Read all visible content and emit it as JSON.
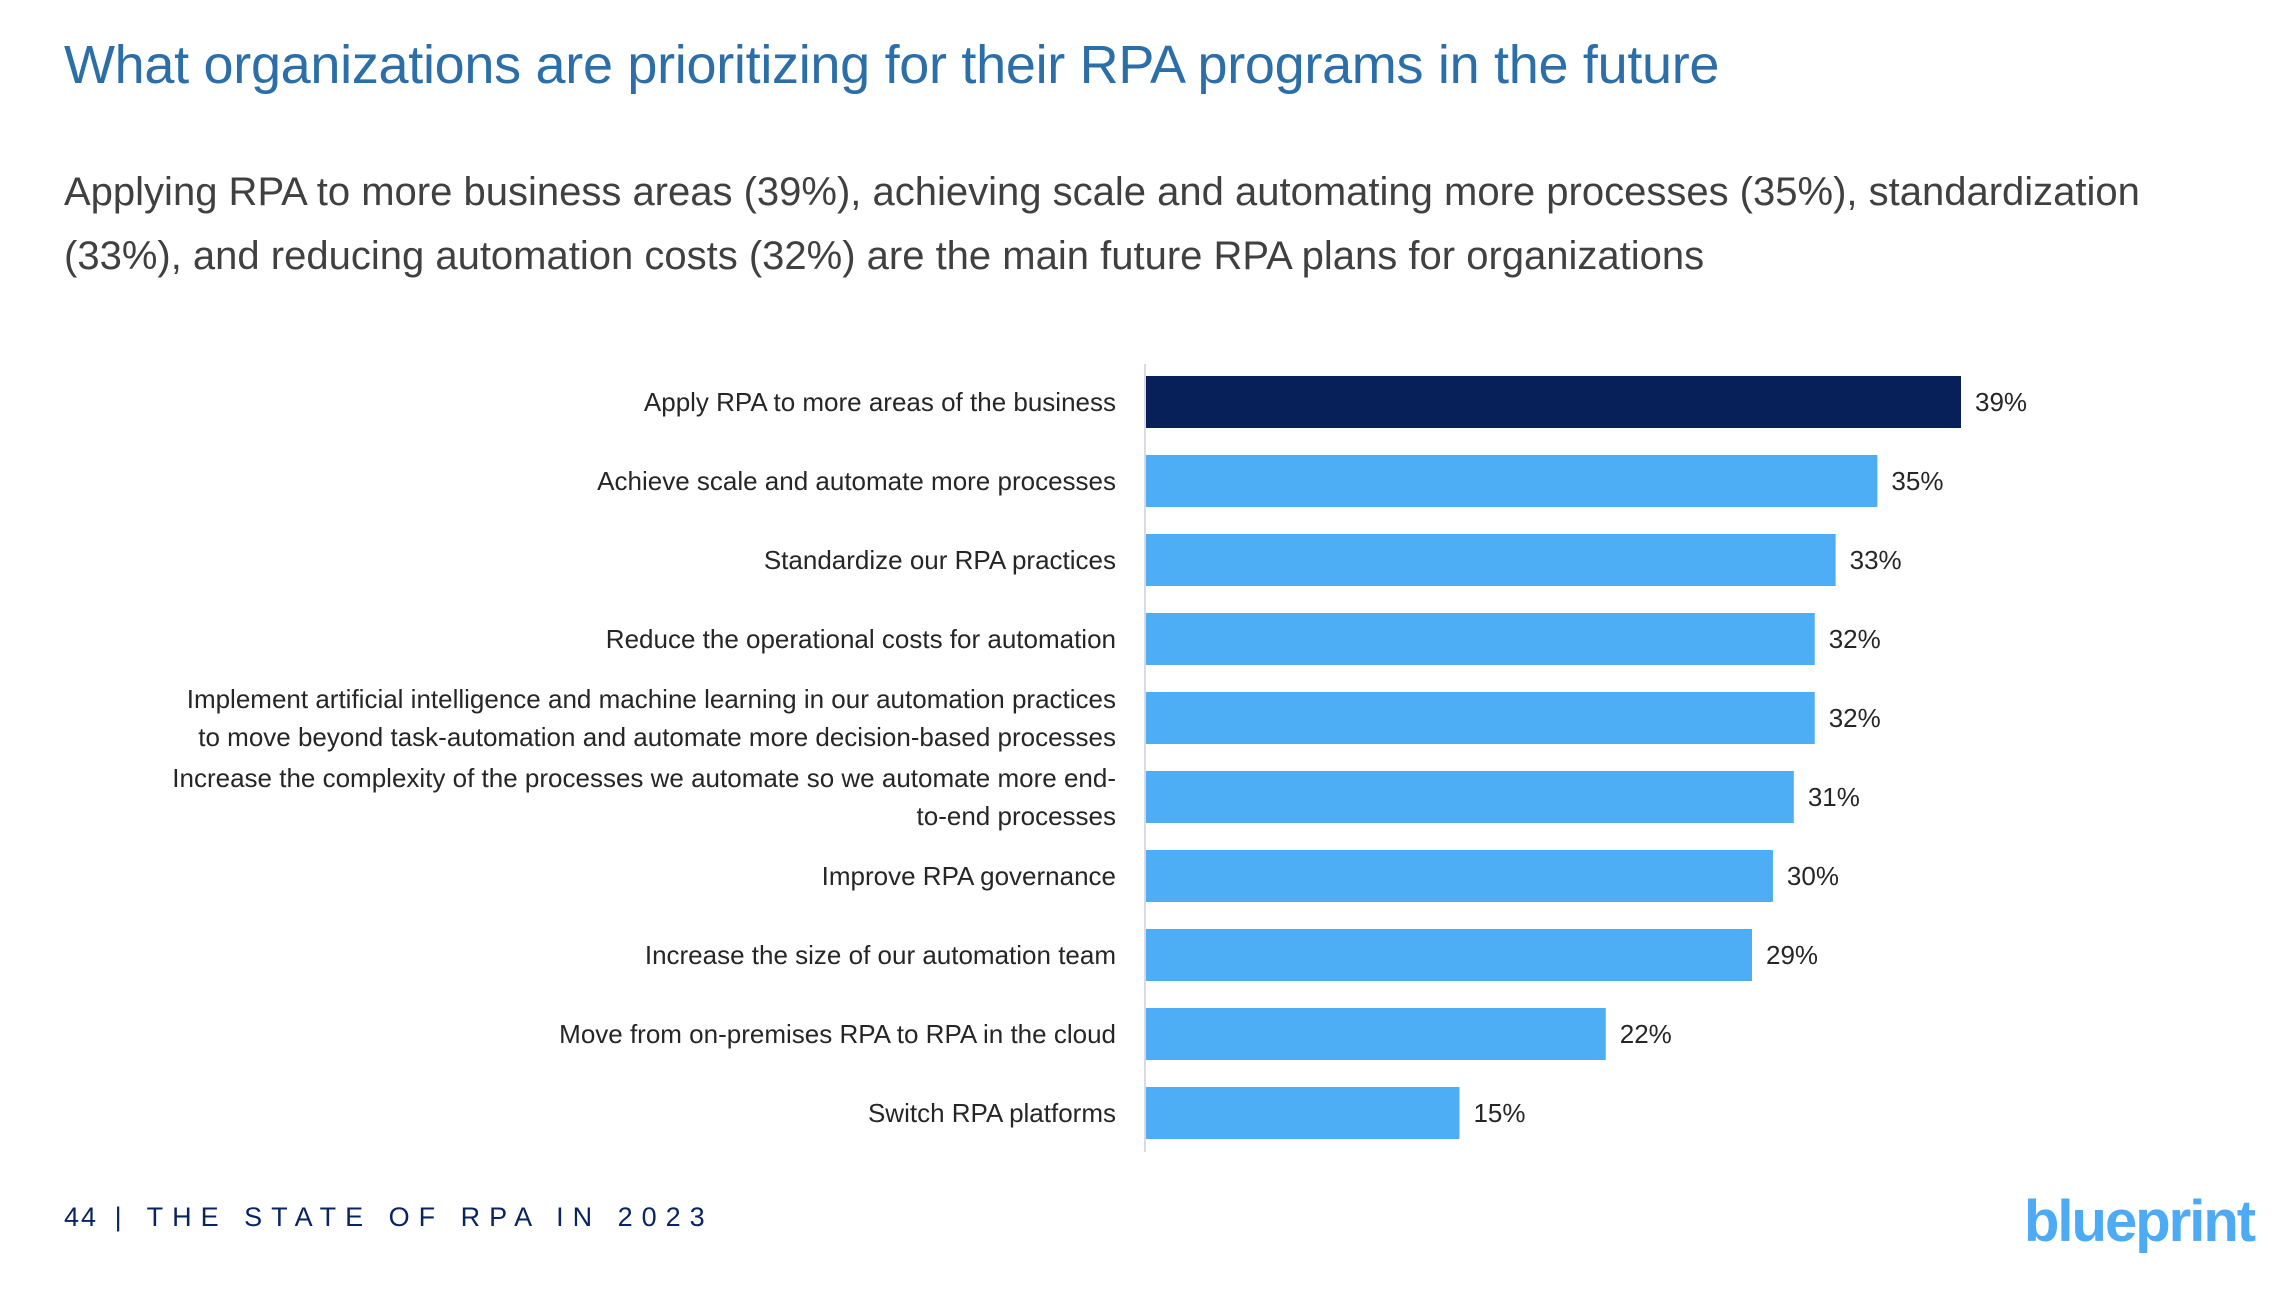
{
  "header": {
    "title": "What organizations are prioritizing for their RPA programs in the future",
    "subtitle": "Applying RPA to more business areas (39%), achieving scale and automating more processes (35%), standardization (33%), and reducing automation costs (32%) are the main future RPA plans for organizations"
  },
  "chart_data": {
    "type": "bar",
    "orientation": "horizontal",
    "categories": [
      [
        "Apply RPA to more areas of the business"
      ],
      [
        "Achieve scale and automate more processes"
      ],
      [
        "Standardize our RPA practices"
      ],
      [
        "Reduce the operational costs for automation"
      ],
      [
        "Implement artificial intelligence and machine learning in our automation practices",
        "to move beyond task-automation and automate more decision-based processes"
      ],
      [
        "Increase the complexity of the processes we automate so we automate more end-",
        "to-end processes"
      ],
      [
        "Improve RPA governance"
      ],
      [
        "Increase the size of our automation team"
      ],
      [
        "Move from on-premises RPA to RPA in the cloud"
      ],
      [
        "Switch RPA platforms"
      ]
    ],
    "values": [
      39,
      35,
      33,
      32,
      32,
      31,
      30,
      29,
      22,
      15
    ],
    "data_labels": [
      "39%",
      "35%",
      "33%",
      "32%",
      "32%",
      "31%",
      "30%",
      "29%",
      "22%",
      "15%"
    ],
    "highlight_index": 0,
    "colors": {
      "highlight": "#08205a",
      "default": "#4dadf5",
      "axis": "#d9d9e6"
    },
    "xlim": [
      0,
      39
    ],
    "grid": false,
    "legend": "none"
  },
  "footer": {
    "page_number": "44",
    "separator": "|",
    "report_title": "THE STATE OF RPA IN 2023"
  },
  "logo": {
    "text": "blueprint",
    "color": "#4dabf5"
  }
}
